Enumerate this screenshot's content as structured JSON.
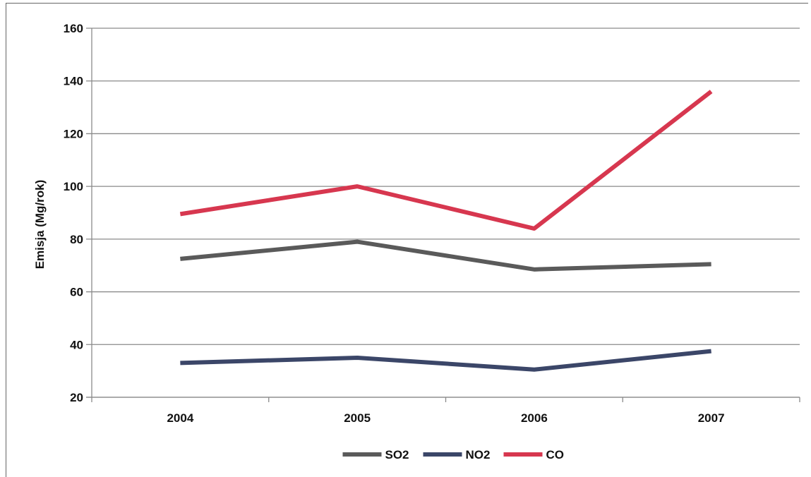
{
  "chart_data": {
    "type": "line",
    "title": "",
    "xlabel": "",
    "ylabel": "Emisja (Mg/rok)",
    "categories": [
      "2004",
      "2005",
      "2006",
      "2007"
    ],
    "ylim": [
      20,
      160
    ],
    "yticks": [
      20,
      40,
      60,
      80,
      100,
      120,
      140,
      160
    ],
    "grid": true,
    "legend_position": "bottom",
    "series": [
      {
        "name": "SO2",
        "color": "#5a5a5a",
        "values": [
          72.5,
          79,
          68.5,
          70.5
        ]
      },
      {
        "name": "NO2",
        "color": "#3b4668",
        "values": [
          33,
          35,
          30.5,
          37.5
        ]
      },
      {
        "name": "CO",
        "color": "#d7374f",
        "values": [
          89.5,
          100,
          84,
          136
        ]
      }
    ]
  }
}
